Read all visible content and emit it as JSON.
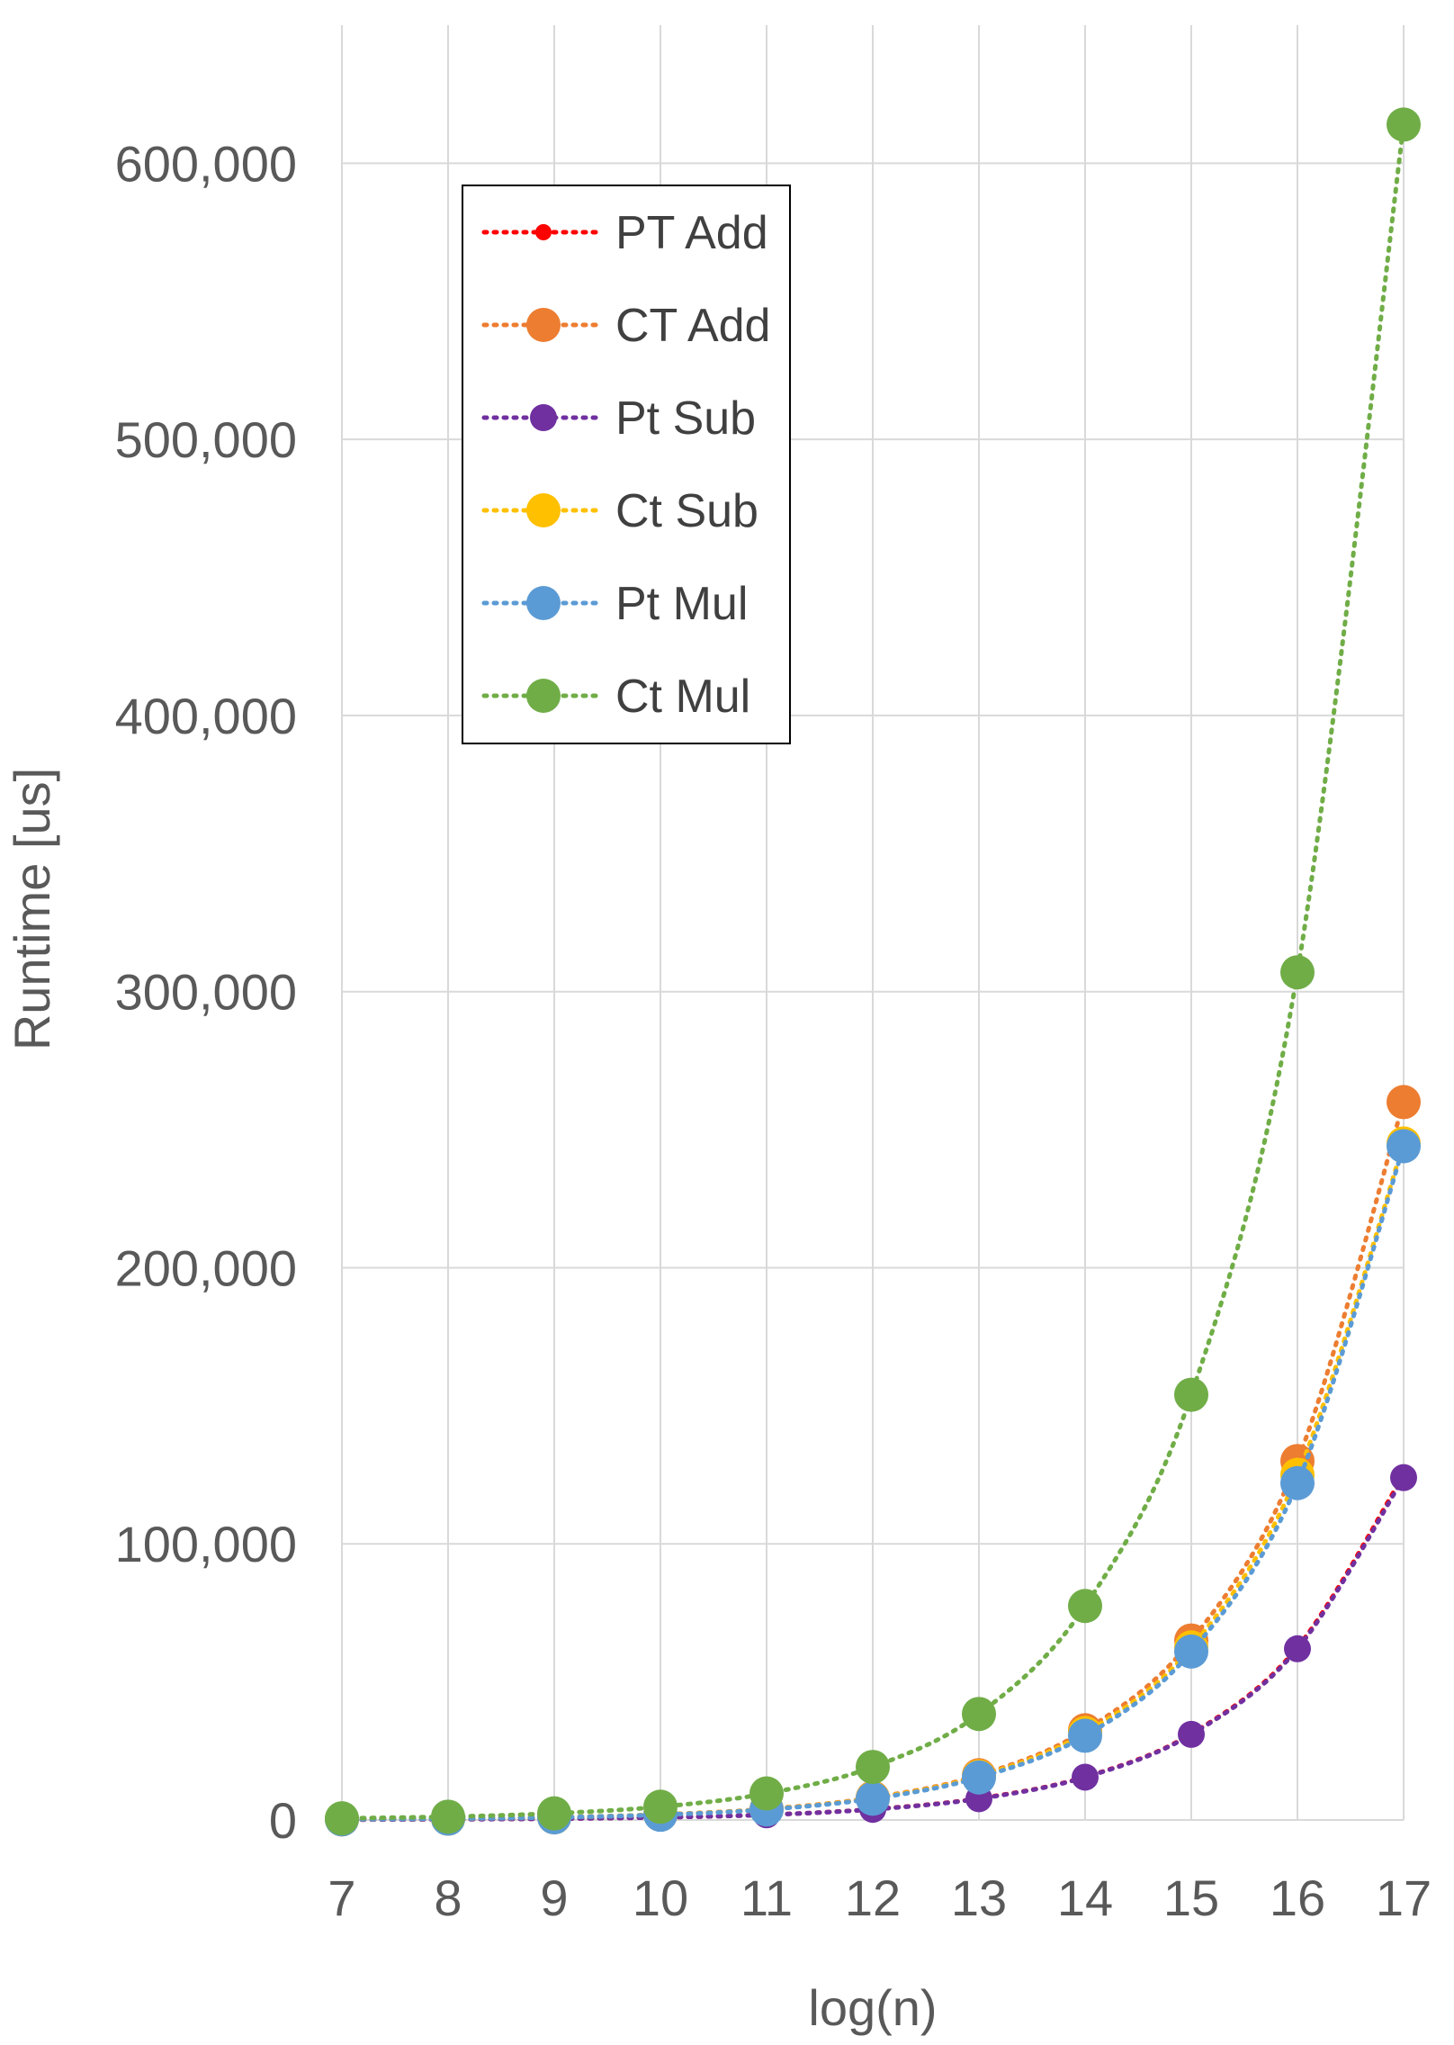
{
  "chart_data": {
    "type": "line",
    "title": "",
    "xlabel": "log(n)",
    "ylabel": "Runtime [us]",
    "x": [
      7,
      8,
      9,
      10,
      11,
      12,
      13,
      14,
      15,
      16,
      17
    ],
    "xlim": [
      7,
      17
    ],
    "ylim": [
      0,
      650000
    ],
    "yticks": [
      0,
      100000,
      200000,
      300000,
      400000,
      500000,
      600000
    ],
    "ytick_labels": [
      "0",
      "100,000",
      "200,000",
      "300,000",
      "400,000",
      "500,000",
      "600,000"
    ],
    "xtick_labels": [
      "7",
      "8",
      "9",
      "10",
      "11",
      "12",
      "13",
      "14",
      "15",
      "16",
      "17"
    ],
    "grid": true,
    "legend_position": "top-left",
    "line_style": "dotted",
    "series": [
      {
        "name": "PT Add",
        "color": "#ff0000",
        "marker": "small",
        "values": [
          120,
          240,
          480,
          950,
          1900,
          3900,
          7800,
          15600,
          31200,
          62500,
          125000
        ]
      },
      {
        "name": "CT Add",
        "color": "#ed7d31",
        "marker": "large",
        "values": [
          250,
          500,
          1000,
          2000,
          4000,
          8100,
          16200,
          32500,
          65000,
          130000,
          260000
        ]
      },
      {
        "name": "Pt Sub",
        "color": "#7030a0",
        "marker": "medium",
        "values": [
          115,
          230,
          470,
          940,
          1880,
          3850,
          7700,
          15500,
          31000,
          62000,
          124000
        ]
      },
      {
        "name": "Ct Sub",
        "color": "#ffc000",
        "marker": "large",
        "values": [
          240,
          480,
          960,
          1950,
          3900,
          7900,
          15800,
          31500,
          62500,
          125000,
          245000
        ]
      },
      {
        "name": "Pt Mul",
        "color": "#5b9bd5",
        "marker": "large",
        "values": [
          235,
          470,
          950,
          1900,
          3800,
          7700,
          15400,
          30500,
          61000,
          122000,
          244000
        ]
      },
      {
        "name": "Ct Mul",
        "color": "#70ad47",
        "marker": "large",
        "values": [
          600,
          1200,
          2400,
          4800,
          9600,
          19200,
          38400,
          77500,
          154000,
          307000,
          614000
        ]
      }
    ]
  }
}
